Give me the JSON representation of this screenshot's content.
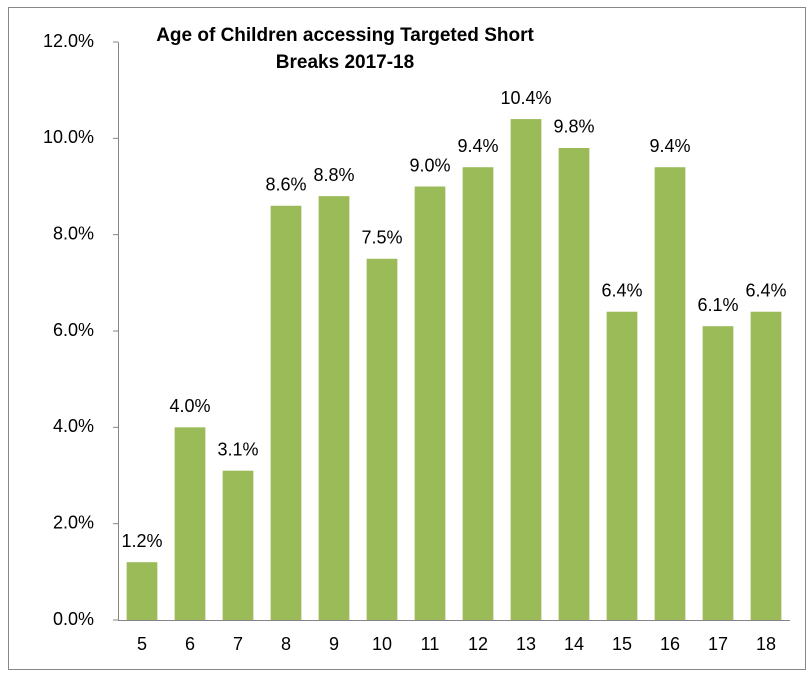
{
  "chart_data": {
    "type": "bar",
    "title": "Age of Children accessing Targeted Short Breaks 2017-18",
    "categories": [
      5,
      6,
      7,
      8,
      9,
      10,
      11,
      12,
      13,
      14,
      15,
      16,
      17,
      18
    ],
    "values": [
      1.2,
      4.0,
      3.1,
      8.6,
      8.8,
      7.5,
      9.0,
      9.4,
      10.4,
      9.8,
      6.4,
      9.4,
      6.1,
      6.4
    ],
    "value_labels": [
      "1.2%",
      "4.0%",
      "3.1%",
      "8.6%",
      "8.8%",
      "7.5%",
      "9.0%",
      "9.4%",
      "10.4%",
      "9.8%",
      "6.4%",
      "9.4%",
      "6.1%",
      "6.4%"
    ],
    "color": "#9bbb59",
    "ylim": [
      0,
      12
    ],
    "yticks": [
      {
        "value": 0,
        "label": "0.0%"
      },
      {
        "value": 2,
        "label": "2.0%"
      },
      {
        "value": 4,
        "label": "4.0%"
      },
      {
        "value": 6,
        "label": "6.0%"
      },
      {
        "value": 8,
        "label": "8.0%"
      },
      {
        "value": 10,
        "label": "10.0%"
      },
      {
        "value": 12,
        "label": "12.0%"
      }
    ],
    "grid": false
  }
}
